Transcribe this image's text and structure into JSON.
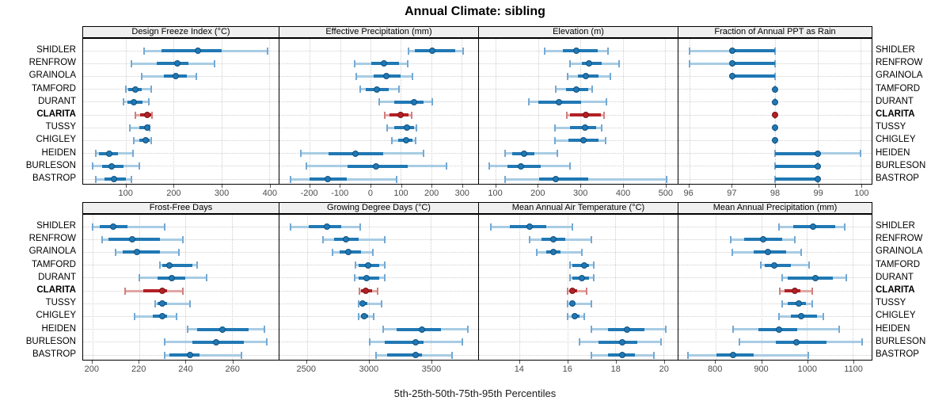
{
  "title": "Annual Climate: sibling",
  "caption": "5th-25th-50th-75th-95th Percentiles",
  "stations": [
    "SHIDLER",
    "RENFROW",
    "GRAINOLA",
    "TAMFORD",
    "DURANT",
    "CLARITA",
    "TUSSY",
    "CHIGLEY",
    "HEIDEN",
    "BURLESON",
    "BASTROP"
  ],
  "highlight_station": "CLARITA",
  "colors": {
    "blue_main": "#2078b4",
    "blue_band": "#a8cce4",
    "blue_cap": "#74a9d4",
    "blue_dot_border": "#12507e",
    "red_main": "#b22025",
    "red_band": "#e2a6a4",
    "red_cap": "#d07f7e",
    "red_dot_border": "#7a1517",
    "strip_bg": "#f0f0f0",
    "grid": "#cfcfcf",
    "panel_border": "#000000"
  },
  "chart_data": [
    {
      "id": "design-freeze-index",
      "type": "dotplot-percentiles",
      "title": "Design Freeze Index (°C)",
      "percentiles": [
        5,
        25,
        50,
        75,
        95
      ],
      "xlim": [
        10,
        420
      ],
      "ticks": [
        100,
        200,
        300,
        400
      ],
      "values": [
        [
          138,
          175,
          250,
          300,
          397
        ],
        [
          111,
          164,
          208,
          230,
          286
        ],
        [
          133,
          180,
          205,
          228,
          247
        ],
        [
          100,
          105,
          119,
          133,
          152
        ],
        [
          94,
          103,
          116,
          135,
          147
        ],
        [
          119,
          130,
          144,
          152,
          155
        ],
        [
          108,
          128,
          144,
          147,
          150
        ],
        [
          116,
          128,
          141,
          150,
          152
        ],
        [
          36,
          44,
          64,
          83,
          114
        ],
        [
          30,
          50,
          69,
          94,
          128
        ],
        [
          36,
          55,
          75,
          100,
          111
        ]
      ]
    },
    {
      "id": "effective-precipitation",
      "type": "dotplot-percentiles",
      "title": "Effective Precipitation (mm)",
      "percentiles": [
        5,
        25,
        50,
        75,
        95
      ],
      "xlim": [
        -300,
        355
      ],
      "ticks": [
        -200,
        -100,
        0,
        100,
        200,
        300
      ],
      "values": [
        [
          125,
          147,
          203,
          279,
          306
        ],
        [
          -53,
          3,
          44,
          95,
          124
        ],
        [
          -48,
          11,
          53,
          99,
          139
        ],
        [
          -35,
          -15,
          20,
          60,
          95
        ],
        [
          29,
          78,
          144,
          175,
          203
        ],
        [
          47,
          64,
          99,
          126,
          137
        ],
        [
          54,
          78,
          120,
          144,
          152
        ],
        [
          71,
          91,
          117,
          139,
          148
        ],
        [
          -229,
          -139,
          -49,
          42,
          175
        ],
        [
          -212,
          -75,
          19,
          124,
          250
        ],
        [
          -263,
          -201,
          -141,
          -78,
          87
        ]
      ]
    },
    {
      "id": "elevation",
      "type": "dotplot-percentiles",
      "title": "Elevation (m)",
      "percentiles": [
        5,
        25,
        50,
        75,
        95
      ],
      "xlim": [
        60,
        530
      ],
      "ticks": [
        100,
        200,
        300,
        400,
        500
      ],
      "values": [
        [
          215,
          258,
          290,
          340,
          365
        ],
        [
          275,
          304,
          321,
          350,
          391
        ],
        [
          270,
          294,
          313,
          342,
          371
        ],
        [
          242,
          266,
          291,
          319,
          328
        ],
        [
          178,
          201,
          250,
          302,
          362
        ],
        [
          268,
          275,
          312,
          348,
          356
        ],
        [
          240,
          275,
          310,
          338,
          351
        ],
        [
          239,
          272,
          307,
          342,
          359
        ],
        [
          122,
          138,
          166,
          191,
          245
        ],
        [
          84,
          128,
          160,
          206,
          275
        ],
        [
          122,
          202,
          242,
          318,
          503
        ]
      ]
    },
    {
      "id": "fraction-annual-ppt-as-rain",
      "type": "dotplot-percentiles",
      "title": "Fraction of Annual PPT as Rain",
      "percentiles": [
        5,
        25,
        50,
        75,
        95
      ],
      "xlim": [
        95.75,
        100.25
      ],
      "ticks": [
        96,
        97,
        98,
        99,
        100
      ],
      "values": [
        [
          96,
          97,
          97,
          98,
          98
        ],
        [
          96,
          97,
          97,
          98,
          98
        ],
        [
          97,
          97,
          97,
          98,
          98
        ],
        [
          98,
          98,
          98,
          98,
          98
        ],
        [
          98,
          98,
          98,
          98,
          98
        ],
        [
          98,
          98,
          98,
          98,
          98
        ],
        [
          98,
          98,
          98,
          98,
          98
        ],
        [
          98,
          98,
          98,
          98,
          98
        ],
        [
          98,
          98,
          99,
          99,
          100
        ],
        [
          98,
          98,
          99,
          99,
          99
        ],
        [
          98,
          98,
          99,
          99,
          99
        ]
      ]
    },
    {
      "id": "frost-free-days",
      "type": "dotplot-percentiles",
      "title": "Frost-Free Days",
      "percentiles": [
        5,
        25,
        50,
        75,
        95
      ],
      "xlim": [
        196,
        280
      ],
      "ticks": [
        200,
        220,
        240,
        260
      ],
      "values": [
        [
          200,
          203,
          209,
          215,
          231
        ],
        [
          204,
          207,
          217,
          229,
          239
        ],
        [
          210,
          213,
          219,
          229,
          237
        ],
        [
          229,
          230,
          233,
          243,
          245
        ],
        [
          220,
          228,
          234,
          240,
          249
        ],
        [
          214,
          222,
          230,
          232,
          239
        ],
        [
          227,
          228,
          230,
          232,
          242
        ],
        [
          218,
          226,
          230,
          232,
          236
        ],
        [
          241,
          245,
          256,
          267,
          274
        ],
        [
          231,
          243,
          253,
          265,
          275
        ],
        [
          231,
          233,
          242,
          246,
          264
        ]
      ]
    },
    {
      "id": "growing-degree-days",
      "type": "dotplot-percentiles",
      "title": "Growing Degree Days (°C)",
      "percentiles": [
        5,
        25,
        50,
        75,
        95
      ],
      "xlim": [
        2280,
        3880
      ],
      "ticks": [
        2500,
        3000,
        3500
      ],
      "values": [
        [
          2370,
          2515,
          2660,
          2775,
          2930
        ],
        [
          2630,
          2720,
          2815,
          2915,
          3130
        ],
        [
          2710,
          2765,
          2835,
          2935,
          3030
        ],
        [
          2895,
          2920,
          2995,
          3085,
          3125
        ],
        [
          2885,
          2915,
          2980,
          3085,
          3125
        ],
        [
          2925,
          2935,
          2975,
          3025,
          3070
        ],
        [
          2920,
          2930,
          2950,
          2985,
          3100
        ],
        [
          2920,
          2935,
          2965,
          2995,
          3040
        ],
        [
          3115,
          3225,
          3425,
          3580,
          3795
        ],
        [
          3005,
          3130,
          3375,
          3440,
          3750
        ],
        [
          3060,
          3150,
          3375,
          3430,
          3670
        ]
      ]
    },
    {
      "id": "mean-annual-air-temperature",
      "type": "dotplot-percentiles",
      "title": "Mean Annual Air Temperature (°C)",
      "percentiles": [
        5,
        25,
        50,
        75,
        95
      ],
      "xlim": [
        12.3,
        20.6
      ],
      "ticks": [
        14,
        16,
        18,
        20
      ],
      "values": [
        [
          12.8,
          13.6,
          14.4,
          15.1,
          16.2
        ],
        [
          14.4,
          14.9,
          15.4,
          15.9,
          17.0
        ],
        [
          14.7,
          15.1,
          15.4,
          15.7,
          16.6
        ],
        [
          16.1,
          16.2,
          16.7,
          16.9,
          17.1
        ],
        [
          16.1,
          16.2,
          16.6,
          16.9,
          17.1
        ],
        [
          16.0,
          16.1,
          16.2,
          16.4,
          16.8
        ],
        [
          16.0,
          16.1,
          16.2,
          16.3,
          17.0
        ],
        [
          16.0,
          16.2,
          16.3,
          16.5,
          16.7
        ],
        [
          17.0,
          17.7,
          18.5,
          19.2,
          20.1
        ],
        [
          16.5,
          17.3,
          18.3,
          18.9,
          19.9
        ],
        [
          17.0,
          17.7,
          18.3,
          18.8,
          19.6
        ]
      ]
    },
    {
      "id": "mean-annual-precipitation",
      "type": "dotplot-percentiles",
      "title": "Mean Annual Precipitation (mm)",
      "percentiles": [
        5,
        25,
        50,
        75,
        95
      ],
      "xlim": [
        719,
        1141
      ],
      "ticks": [
        800,
        900,
        1000,
        1100
      ],
      "values": [
        [
          939,
          969,
          1013,
          1062,
          1083
        ],
        [
          834,
          862,
          904,
          946,
          974
        ],
        [
          836,
          883,
          914,
          955,
          987
        ],
        [
          899,
          908,
          928,
          965,
          1004
        ],
        [
          946,
          958,
          1018,
          1056,
          1085
        ],
        [
          940,
          951,
          973,
          986,
          1011
        ],
        [
          945,
          958,
          982,
          998,
          1011
        ],
        [
          938,
          964,
          987,
          1021,
          1036
        ],
        [
          838,
          894,
          939,
          978,
          1070
        ],
        [
          852,
          932,
          976,
          1042,
          1120
        ],
        [
          739,
          802,
          839,
          883,
          1002
        ]
      ]
    }
  ]
}
